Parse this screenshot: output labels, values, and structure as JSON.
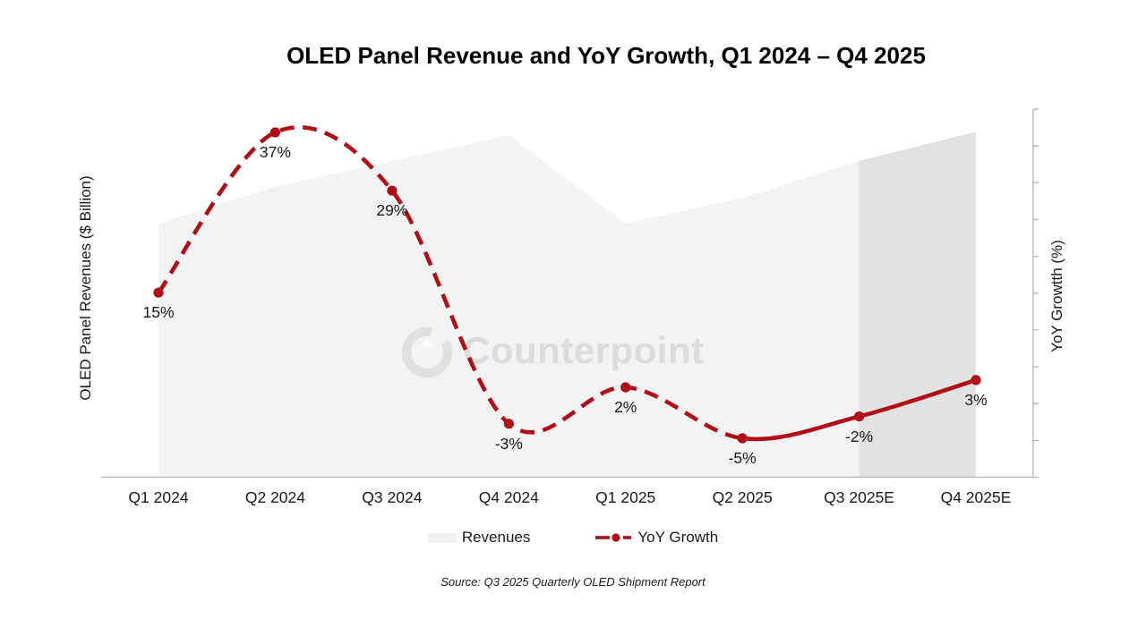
{
  "title": "OLED Panel Revenue and YoY Growth, Q1 2024 – Q4 2025",
  "watermark": "Counterpoint",
  "source": "Source: Q3 2025 Quarterly OLED Shipment Report",
  "axes": {
    "left_label": "OLED Panel Revenues ($ Billion)",
    "right_label": "YoY Growtth (%)",
    "right_axis_numeric_labels_visible": false
  },
  "legend": {
    "revenues_label": "Revenues",
    "yoy_label": "YoY Growth"
  },
  "colors": {
    "line_red": "#b00f17",
    "area_light": "#f3f3f3",
    "area_estimated": "#e2e2e2",
    "axis_line": "#b3b3b3",
    "watermark_gray": "#dcdcdc"
  },
  "chart_data": {
    "type": "combo",
    "categories": [
      "Q1 2024",
      "Q2 2024",
      "Q3 2024",
      "Q4 2024",
      "Q1 2025",
      "Q2 2025",
      "Q3 2025E",
      "Q4 2025E"
    ],
    "series": [
      {
        "name": "Revenues",
        "chart_type": "area",
        "y_axis": "left",
        "y_axis_unit": "$ Billion (no numeric tick labels shown)",
        "values_relative_height": [
          0.69,
          0.79,
          0.86,
          0.93,
          0.69,
          0.76,
          0.86,
          0.94
        ],
        "estimated_quarters": [
          "Q3 2025E",
          "Q4 2025E"
        ]
      },
      {
        "name": "YoY Growth",
        "chart_type": "line",
        "y_axis": "right",
        "y_axis_unit": "%",
        "values": [
          15,
          37,
          29,
          -3,
          2,
          -5,
          -2,
          3
        ],
        "labels": [
          "15%",
          "37%",
          "29%",
          "-3%",
          "2%",
          "-5%",
          "-2%",
          "3%"
        ],
        "line_style": "dashed from Q1 2024 to Q2 2025, solid from Q2 2025 to Q4 2025E"
      }
    ],
    "legend_position": "bottom",
    "grid": false
  }
}
